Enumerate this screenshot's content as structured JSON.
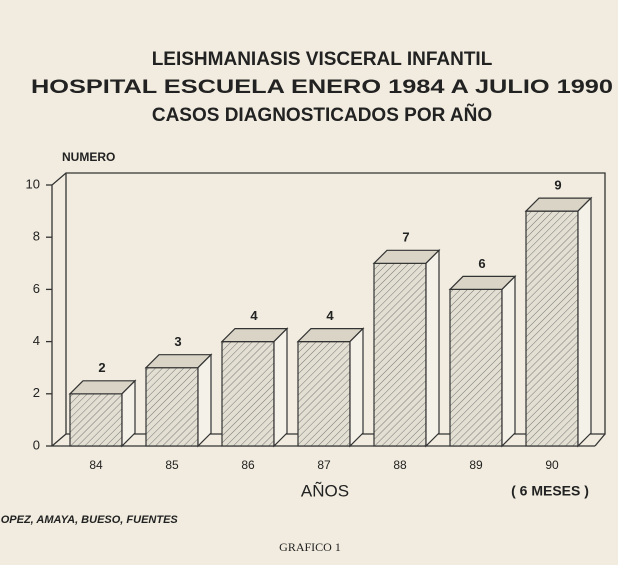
{
  "chart_data": {
    "type": "bar3d",
    "title": [
      "LEISHMANIASIS VISCERAL INFANTIL",
      "HOSPITAL ESCUELA ENERO 1984 A JULIO 1990",
      "CASOS DIAGNOSTICADOS POR AÑO"
    ],
    "y_label": "NUMERO",
    "x_label": "AÑOS",
    "annotations": [
      "( 6 MESES )",
      "LOPEZ, AMAYA, BUESO, FUENTES",
      "GRAFICO 1"
    ],
    "categories": [
      "84",
      "85",
      "86",
      "87",
      "88",
      "89",
      "90"
    ],
    "values": [
      2,
      3,
      4,
      4,
      7,
      6,
      9
    ],
    "color": "#d9d4c6",
    "ylim": [
      0,
      10
    ],
    "yticks": [
      0,
      2,
      4,
      6,
      8,
      10
    ]
  }
}
